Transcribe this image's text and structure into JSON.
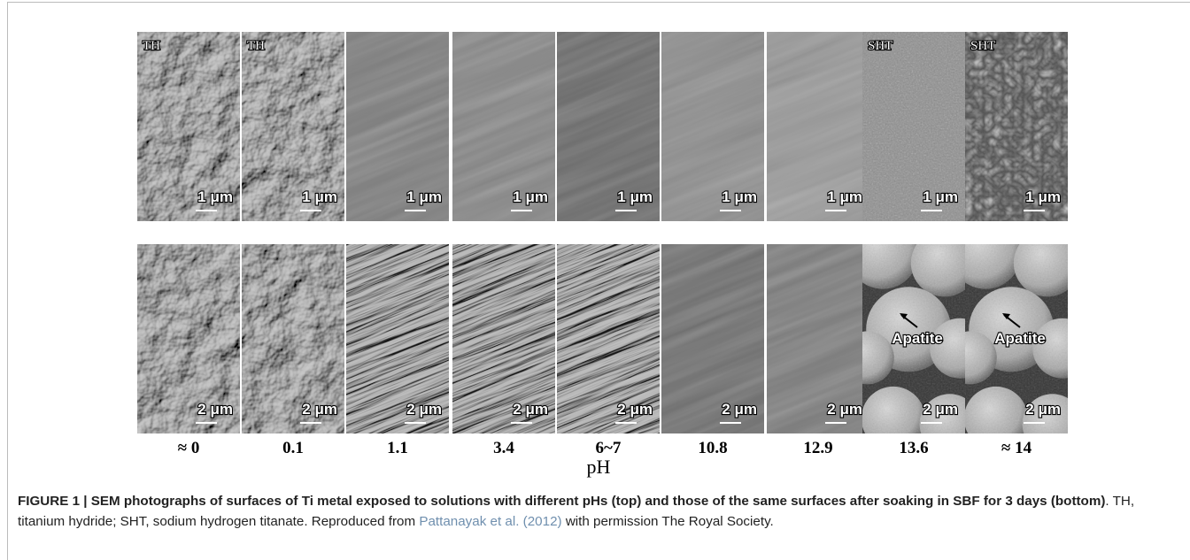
{
  "figure": {
    "columns": [
      {
        "top_label": "TH",
        "top_scale": "1 μm",
        "bottom_scale": "2 μm",
        "ph": "≈ 0"
      },
      {
        "top_label": "TH",
        "top_scale": "1 μm",
        "bottom_scale": "2 μm",
        "ph": "0.1"
      },
      {
        "top_scale": "1 μm",
        "bottom_scale": "2 μm",
        "ph": "1.1"
      },
      {
        "top_scale": "1 μm",
        "bottom_scale": "2 μm",
        "ph": "3.4"
      },
      {
        "top_scale": "1 μm",
        "bottom_scale": "2 μm",
        "ph": "6~7"
      },
      {
        "top_scale": "1 μm",
        "bottom_scale": "2 μm",
        "ph": "10.8"
      },
      {
        "top_scale": "1 μm",
        "bottom_scale": "2 μm",
        "ph": "12.9"
      },
      {
        "top_label": "SHT",
        "top_scale": "1 μm",
        "bottom_scale": "2 μm",
        "bottom_annotation": "Apatite",
        "ph": "13.6"
      },
      {
        "top_label": "SHT",
        "top_scale": "1 μm",
        "bottom_scale": "2 μm",
        "bottom_annotation": "Apatite",
        "ph": "≈ 14"
      }
    ],
    "axis_label": "pH"
  },
  "caption": {
    "label": "FIGURE 1 | SEM photographs of surfaces of Ti metal exposed to solutions with different pHs (top) and those of the same surfaces after soaking in SBF for 3 days (bottom)",
    "text": ". TH, titanium hydride; SHT, sodium hydrogen titanate. Reproduced from ",
    "link": "Pattanayak et al. (2012)",
    "tail": " with permission The Royal Society."
  }
}
